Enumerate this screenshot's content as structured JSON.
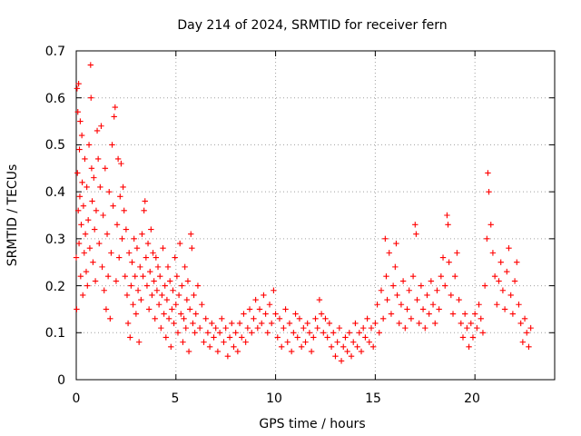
{
  "chart_data": {
    "type": "scatter",
    "title": "Day 214 of 2024, SRMTID for receiver fern",
    "xlabel": "GPS time / hours",
    "ylabel": "SRMTID / TECUs",
    "xlim": [
      0,
      24
    ],
    "ylim": [
      0,
      0.7
    ],
    "xticks": [
      0,
      5,
      10,
      15,
      20
    ],
    "xtick_labels": [
      "0",
      "5",
      "10",
      "15",
      "20"
    ],
    "yticks": [
      0,
      0.1,
      0.2,
      0.3,
      0.4,
      0.5,
      0.6,
      0.7
    ],
    "ytick_labels": [
      "0",
      "0.1",
      "0.2",
      "0.3",
      "0.4",
      "0.5",
      "0.6",
      "0.7"
    ],
    "grid": true,
    "marker": "plus",
    "series": [
      {
        "name": "SRMTID",
        "color": "#ff0000",
        "points": [
          [
            0.0,
            0.26
          ],
          [
            0.02,
            0.15
          ],
          [
            0.04,
            0.62
          ],
          [
            0.06,
            0.44
          ],
          [
            0.08,
            0.57
          ],
          [
            0.1,
            0.36
          ],
          [
            0.12,
            0.63
          ],
          [
            0.14,
            0.29
          ],
          [
            0.16,
            0.49
          ],
          [
            0.18,
            0.39
          ],
          [
            0.2,
            0.55
          ],
          [
            0.22,
            0.22
          ],
          [
            0.25,
            0.33
          ],
          [
            0.28,
            0.52
          ],
          [
            0.3,
            0.42
          ],
          [
            0.33,
            0.18
          ],
          [
            0.36,
            0.37
          ],
          [
            0.4,
            0.27
          ],
          [
            0.43,
            0.47
          ],
          [
            0.46,
            0.31
          ],
          [
            0.5,
            0.23
          ],
          [
            0.53,
            0.41
          ],
          [
            0.56,
            0.2
          ],
          [
            0.6,
            0.34
          ],
          [
            0.64,
            0.5
          ],
          [
            0.68,
            0.28
          ],
          [
            0.72,
            0.67
          ],
          [
            0.74,
            0.6
          ],
          [
            0.77,
            0.45
          ],
          [
            0.8,
            0.38
          ],
          [
            0.84,
            0.25
          ],
          [
            0.88,
            0.43
          ],
          [
            0.92,
            0.32
          ],
          [
            0.96,
            0.21
          ],
          [
            1.0,
            0.36
          ],
          [
            1.05,
            0.53
          ],
          [
            1.1,
            0.47
          ],
          [
            1.15,
            0.29
          ],
          [
            1.2,
            0.41
          ],
          [
            1.25,
            0.54
          ],
          [
            1.3,
            0.24
          ],
          [
            1.35,
            0.35
          ],
          [
            1.4,
            0.19
          ],
          [
            1.45,
            0.45
          ],
          [
            1.5,
            0.15
          ],
          [
            1.55,
            0.31
          ],
          [
            1.6,
            0.22
          ],
          [
            1.65,
            0.4
          ],
          [
            1.7,
            0.13
          ],
          [
            1.75,
            0.27
          ],
          [
            1.8,
            0.5
          ],
          [
            1.85,
            0.37
          ],
          [
            1.9,
            0.56
          ],
          [
            1.95,
            0.58
          ],
          [
            2.0,
            0.21
          ],
          [
            2.05,
            0.33
          ],
          [
            2.1,
            0.47
          ],
          [
            2.15,
            0.26
          ],
          [
            2.2,
            0.39
          ],
          [
            2.25,
            0.46
          ],
          [
            2.3,
            0.3
          ],
          [
            2.35,
            0.41
          ],
          [
            2.4,
            0.36
          ],
          [
            2.45,
            0.22
          ],
          [
            2.5,
            0.32
          ],
          [
            2.55,
            0.18
          ],
          [
            2.6,
            0.12
          ],
          [
            2.65,
            0.27
          ],
          [
            2.7,
            0.09
          ],
          [
            2.75,
            0.2
          ],
          [
            2.8,
            0.25
          ],
          [
            2.85,
            0.16
          ],
          [
            2.9,
            0.3
          ],
          [
            2.95,
            0.22
          ],
          [
            3.0,
            0.14
          ],
          [
            3.05,
            0.28
          ],
          [
            3.1,
            0.19
          ],
          [
            3.15,
            0.08
          ],
          [
            3.2,
            0.24
          ],
          [
            3.25,
            0.17
          ],
          [
            3.3,
            0.31
          ],
          [
            3.35,
            0.22
          ],
          [
            3.4,
            0.36
          ],
          [
            3.45,
            0.38
          ],
          [
            3.5,
            0.26
          ],
          [
            3.55,
            0.2
          ],
          [
            3.6,
            0.29
          ],
          [
            3.65,
            0.15
          ],
          [
            3.7,
            0.23
          ],
          [
            3.75,
            0.32
          ],
          [
            3.8,
            0.18
          ],
          [
            3.85,
            0.27
          ],
          [
            3.9,
            0.21
          ],
          [
            3.95,
            0.13
          ],
          [
            4.0,
            0.26
          ],
          [
            4.05,
            0.19
          ],
          [
            4.1,
            0.24
          ],
          [
            4.15,
            0.16
          ],
          [
            4.2,
            0.22
          ],
          [
            4.25,
            0.11
          ],
          [
            4.3,
            0.18
          ],
          [
            4.35,
            0.28
          ],
          [
            4.4,
            0.14
          ],
          [
            4.45,
            0.2
          ],
          [
            4.5,
            0.09
          ],
          [
            4.55,
            0.17
          ],
          [
            4.6,
            0.24
          ],
          [
            4.65,
            0.13
          ],
          [
            4.7,
            0.21
          ],
          [
            4.75,
            0.07
          ],
          [
            4.8,
            0.15
          ],
          [
            4.85,
            0.19
          ],
          [
            4.9,
            0.12
          ],
          [
            4.95,
            0.26
          ],
          [
            5.0,
            0.16
          ],
          [
            5.05,
            0.22
          ],
          [
            5.1,
            0.1
          ],
          [
            5.15,
            0.18
          ],
          [
            5.2,
            0.29
          ],
          [
            5.25,
            0.14
          ],
          [
            5.3,
            0.2
          ],
          [
            5.35,
            0.08
          ],
          [
            5.4,
            0.13
          ],
          [
            5.45,
            0.24
          ],
          [
            5.5,
            0.11
          ],
          [
            5.55,
            0.17
          ],
          [
            5.6,
            0.21
          ],
          [
            5.65,
            0.06
          ],
          [
            5.7,
            0.15
          ],
          [
            5.75,
            0.31
          ],
          [
            5.8,
            0.28
          ],
          [
            5.85,
            0.12
          ],
          [
            5.9,
            0.18
          ],
          [
            5.95,
            0.1
          ],
          [
            6.0,
            0.14
          ],
          [
            6.1,
            0.2
          ],
          [
            6.2,
            0.11
          ],
          [
            6.3,
            0.16
          ],
          [
            6.4,
            0.08
          ],
          [
            6.5,
            0.13
          ],
          [
            6.6,
            0.1
          ],
          [
            6.7,
            0.07
          ],
          [
            6.8,
            0.12
          ],
          [
            6.9,
            0.09
          ],
          [
            7.0,
            0.11
          ],
          [
            7.1,
            0.06
          ],
          [
            7.2,
            0.1
          ],
          [
            7.3,
            0.13
          ],
          [
            7.4,
            0.08
          ],
          [
            7.5,
            0.11
          ],
          [
            7.6,
            0.05
          ],
          [
            7.7,
            0.09
          ],
          [
            7.8,
            0.12
          ],
          [
            7.9,
            0.07
          ],
          [
            8.0,
            0.1
          ],
          [
            8.1,
            0.06
          ],
          [
            8.2,
            0.12
          ],
          [
            8.3,
            0.09
          ],
          [
            8.4,
            0.14
          ],
          [
            8.5,
            0.08
          ],
          [
            8.6,
            0.11
          ],
          [
            8.7,
            0.15
          ],
          [
            8.8,
            0.1
          ],
          [
            8.9,
            0.13
          ],
          [
            9.0,
            0.17
          ],
          [
            9.1,
            0.11
          ],
          [
            9.2,
            0.15
          ],
          [
            9.3,
            0.12
          ],
          [
            9.4,
            0.18
          ],
          [
            9.5,
            0.14
          ],
          [
            9.6,
            0.1
          ],
          [
            9.7,
            0.16
          ],
          [
            9.8,
            0.12
          ],
          [
            9.9,
            0.19
          ],
          [
            10.0,
            0.14
          ],
          [
            10.1,
            0.09
          ],
          [
            10.2,
            0.13
          ],
          [
            10.3,
            0.07
          ],
          [
            10.4,
            0.11
          ],
          [
            10.5,
            0.15
          ],
          [
            10.6,
            0.08
          ],
          [
            10.7,
            0.12
          ],
          [
            10.8,
            0.06
          ],
          [
            10.9,
            0.1
          ],
          [
            11.0,
            0.14
          ],
          [
            11.1,
            0.09
          ],
          [
            11.2,
            0.13
          ],
          [
            11.3,
            0.07
          ],
          [
            11.4,
            0.11
          ],
          [
            11.5,
            0.08
          ],
          [
            11.6,
            0.12
          ],
          [
            11.7,
            0.1
          ],
          [
            11.8,
            0.06
          ],
          [
            11.9,
            0.09
          ],
          [
            12.0,
            0.13
          ],
          [
            12.1,
            0.11
          ],
          [
            12.2,
            0.17
          ],
          [
            12.3,
            0.14
          ],
          [
            12.4,
            0.1
          ],
          [
            12.5,
            0.13
          ],
          [
            12.6,
            0.09
          ],
          [
            12.7,
            0.12
          ],
          [
            12.8,
            0.07
          ],
          [
            12.9,
            0.1
          ],
          [
            13.0,
            0.05
          ],
          [
            13.1,
            0.08
          ],
          [
            13.2,
            0.11
          ],
          [
            13.3,
            0.04
          ],
          [
            13.4,
            0.07
          ],
          [
            13.5,
            0.09
          ],
          [
            13.6,
            0.06
          ],
          [
            13.7,
            0.1
          ],
          [
            13.8,
            0.05
          ],
          [
            13.9,
            0.08
          ],
          [
            14.0,
            0.12
          ],
          [
            14.1,
            0.07
          ],
          [
            14.2,
            0.1
          ],
          [
            14.3,
            0.06
          ],
          [
            14.4,
            0.11
          ],
          [
            14.5,
            0.09
          ],
          [
            14.6,
            0.13
          ],
          [
            14.7,
            0.08
          ],
          [
            14.8,
            0.11
          ],
          [
            14.9,
            0.07
          ],
          [
            15.0,
            0.12
          ],
          [
            15.1,
            0.16
          ],
          [
            15.2,
            0.1
          ],
          [
            15.3,
            0.19
          ],
          [
            15.4,
            0.13
          ],
          [
            15.5,
            0.3
          ],
          [
            15.55,
            0.22
          ],
          [
            15.6,
            0.17
          ],
          [
            15.7,
            0.27
          ],
          [
            15.8,
            0.14
          ],
          [
            15.9,
            0.2
          ],
          [
            16.0,
            0.24
          ],
          [
            16.05,
            0.29
          ],
          [
            16.1,
            0.18
          ],
          [
            16.2,
            0.12
          ],
          [
            16.3,
            0.16
          ],
          [
            16.4,
            0.21
          ],
          [
            16.5,
            0.11
          ],
          [
            16.6,
            0.15
          ],
          [
            16.7,
            0.19
          ],
          [
            16.8,
            0.13
          ],
          [
            16.9,
            0.22
          ],
          [
            17.0,
            0.33
          ],
          [
            17.05,
            0.31
          ],
          [
            17.1,
            0.17
          ],
          [
            17.2,
            0.12
          ],
          [
            17.3,
            0.2
          ],
          [
            17.4,
            0.15
          ],
          [
            17.5,
            0.11
          ],
          [
            17.6,
            0.18
          ],
          [
            17.7,
            0.14
          ],
          [
            17.8,
            0.21
          ],
          [
            17.9,
            0.16
          ],
          [
            18.0,
            0.12
          ],
          [
            18.1,
            0.19
          ],
          [
            18.2,
            0.15
          ],
          [
            18.3,
            0.22
          ],
          [
            18.4,
            0.26
          ],
          [
            18.5,
            0.2
          ],
          [
            18.6,
            0.35
          ],
          [
            18.65,
            0.33
          ],
          [
            18.7,
            0.25
          ],
          [
            18.8,
            0.18
          ],
          [
            18.9,
            0.14
          ],
          [
            19.0,
            0.22
          ],
          [
            19.1,
            0.27
          ],
          [
            19.2,
            0.17
          ],
          [
            19.3,
            0.12
          ],
          [
            19.4,
            0.09
          ],
          [
            19.5,
            0.14
          ],
          [
            19.6,
            0.11
          ],
          [
            19.7,
            0.07
          ],
          [
            19.8,
            0.12
          ],
          [
            19.9,
            0.09
          ],
          [
            20.0,
            0.14
          ],
          [
            20.1,
            0.11
          ],
          [
            20.2,
            0.16
          ],
          [
            20.3,
            0.13
          ],
          [
            20.4,
            0.1
          ],
          [
            20.5,
            0.2
          ],
          [
            20.6,
            0.3
          ],
          [
            20.65,
            0.44
          ],
          [
            20.7,
            0.4
          ],
          [
            20.8,
            0.33
          ],
          [
            20.9,
            0.27
          ],
          [
            21.0,
            0.22
          ],
          [
            21.1,
            0.16
          ],
          [
            21.2,
            0.21
          ],
          [
            21.3,
            0.25
          ],
          [
            21.4,
            0.19
          ],
          [
            21.5,
            0.15
          ],
          [
            21.6,
            0.23
          ],
          [
            21.7,
            0.28
          ],
          [
            21.8,
            0.18
          ],
          [
            21.9,
            0.14
          ],
          [
            22.0,
            0.21
          ],
          [
            22.1,
            0.25
          ],
          [
            22.2,
            0.16
          ],
          [
            22.3,
            0.12
          ],
          [
            22.4,
            0.08
          ],
          [
            22.5,
            0.13
          ],
          [
            22.6,
            0.1
          ],
          [
            22.7,
            0.07
          ],
          [
            22.8,
            0.11
          ]
        ]
      }
    ]
  }
}
